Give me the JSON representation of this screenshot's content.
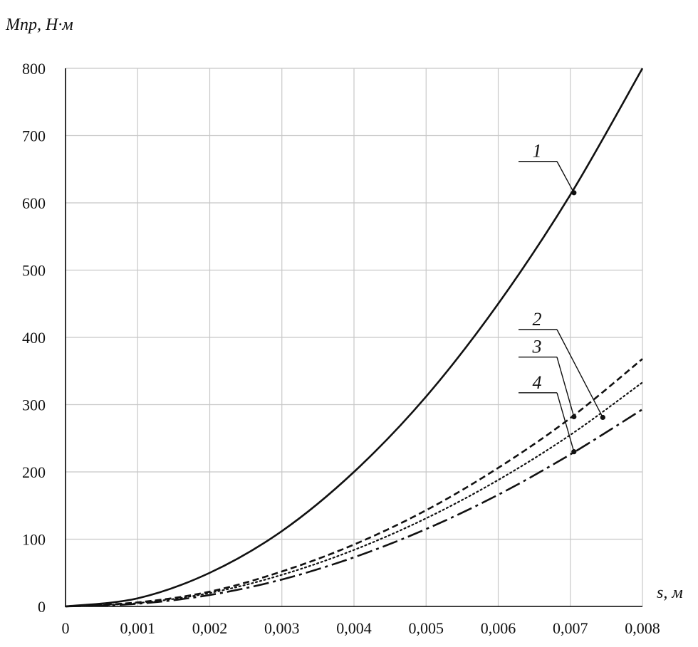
{
  "chart_data": {
    "type": "line",
    "title": "",
    "xlabel": "s, м",
    "ylabel": "Мпр, Н·м",
    "xlim": [
      0,
      0.008
    ],
    "ylim": [
      0,
      800
    ],
    "x_ticks": [
      {
        "value": 0,
        "label": "0"
      },
      {
        "value": 0.001,
        "label": "0,001"
      },
      {
        "value": 0.002,
        "label": "0,002"
      },
      {
        "value": 0.003,
        "label": "0,003"
      },
      {
        "value": 0.004,
        "label": "0,004"
      },
      {
        "value": 0.005,
        "label": "0,005"
      },
      {
        "value": 0.006,
        "label": "0,006"
      },
      {
        "value": 0.007,
        "label": "0,007"
      },
      {
        "value": 0.008,
        "label": "0,008"
      }
    ],
    "y_ticks": [
      {
        "value": 0,
        "label": "0"
      },
      {
        "value": 100,
        "label": "100"
      },
      {
        "value": 200,
        "label": "200"
      },
      {
        "value": 300,
        "label": "300"
      },
      {
        "value": 400,
        "label": "400"
      },
      {
        "value": 500,
        "label": "500"
      },
      {
        "value": 600,
        "label": "600"
      },
      {
        "value": 700,
        "label": "700"
      },
      {
        "value": 800,
        "label": "800"
      }
    ],
    "grid": true,
    "legend": "callout labels",
    "series": [
      {
        "label": "1",
        "style": "solid",
        "x": [
          0,
          0.001,
          0.002,
          0.003,
          0.004,
          0.005,
          0.006,
          0.007,
          0.008
        ],
        "y": [
          0,
          12,
          50,
          112,
          200,
          312,
          450,
          612,
          800
        ],
        "marker": {
          "x": 0.00705,
          "y": 615
        },
        "label_pos": {
          "x": 0.0064,
          "y": 668
        }
      },
      {
        "label": "2",
        "style": "dashed",
        "x": [
          0,
          0.001,
          0.002,
          0.003,
          0.004,
          0.005,
          0.006,
          0.007,
          0.008
        ],
        "y": [
          0,
          6,
          22,
          52,
          92,
          143,
          206,
          280,
          368
        ],
        "marker": {
          "x": 0.00745,
          "y": 281
        },
        "label_pos": {
          "x": 0.0064,
          "y": 418
        }
      },
      {
        "label": "3",
        "style": "dotted",
        "x": [
          0,
          0.001,
          0.002,
          0.003,
          0.004,
          0.005,
          0.006,
          0.007,
          0.008
        ],
        "y": [
          0,
          5,
          20,
          47,
          84,
          131,
          188,
          255,
          333
        ],
        "marker": {
          "x": 0.00705,
          "y": 282
        },
        "label_pos": {
          "x": 0.0064,
          "y": 377
        }
      },
      {
        "label": "4",
        "style": "dash-dot",
        "x": [
          0,
          0.001,
          0.002,
          0.003,
          0.004,
          0.005,
          0.006,
          0.007,
          0.008
        ],
        "y": [
          0,
          4,
          17,
          40,
          73,
          115,
          166,
          226,
          293
        ],
        "marker": {
          "x": 0.00705,
          "y": 230
        },
        "label_pos": {
          "x": 0.0064,
          "y": 324
        }
      }
    ]
  }
}
